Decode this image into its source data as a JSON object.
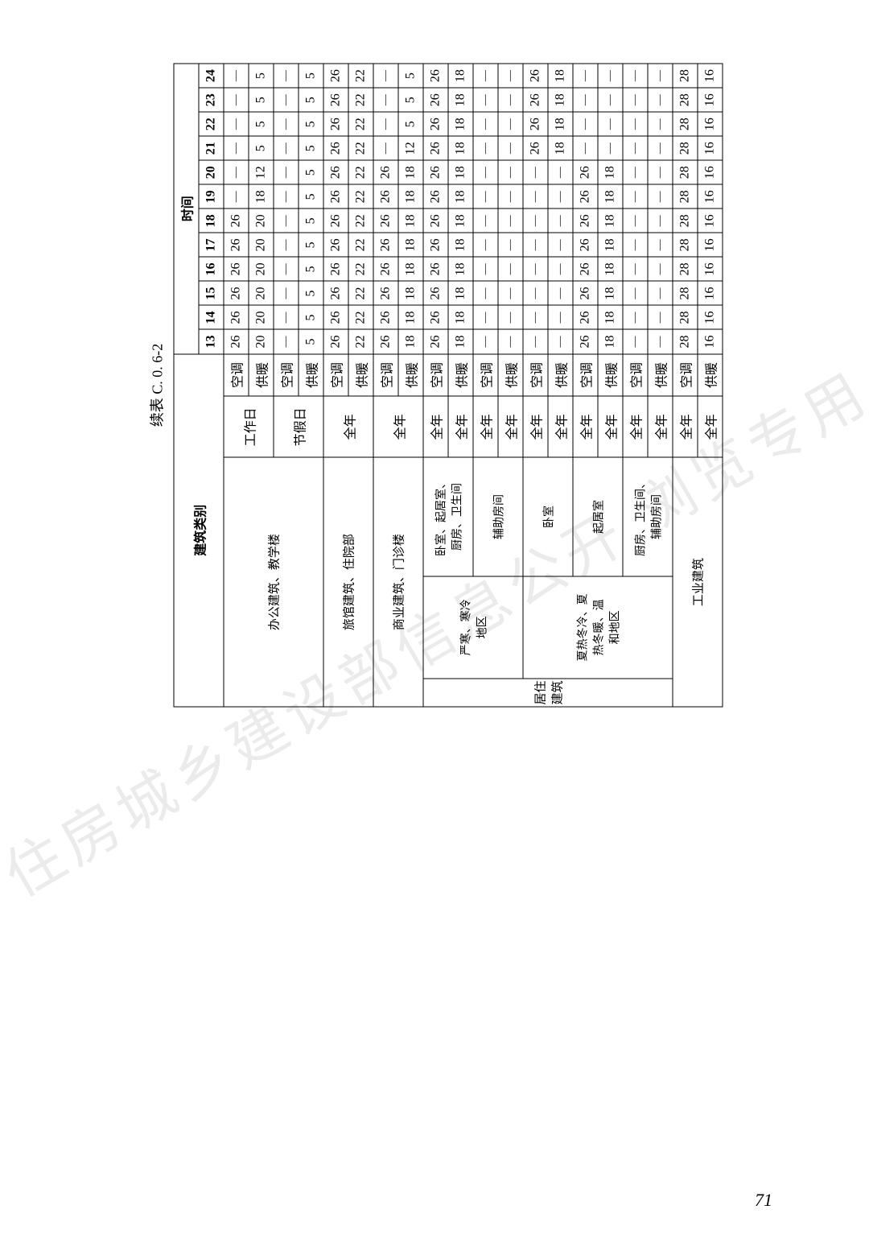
{
  "title": "续表 C. 0. 6-2",
  "page_number": "71",
  "watermark": "住房城乡建设部信息公开 浏览专用",
  "time_header": "时间",
  "category_header": "建筑类别",
  "hour_columns": [
    "13",
    "14",
    "15",
    "16",
    "17",
    "18",
    "19",
    "20",
    "21",
    "22",
    "23",
    "24"
  ],
  "mode_ac": "空调",
  "mode_heat": "供暖",
  "day_work": "工作日",
  "day_holiday": "节假日",
  "day_allyear": "全年",
  "rows": [
    {
      "cat": "办公建筑、教学楼",
      "sub": "",
      "day": "工作日",
      "mode": "空调",
      "v": [
        "26",
        "26",
        "26",
        "26",
        "26",
        "26",
        "—",
        "—",
        "—",
        "—",
        "—",
        "—"
      ]
    },
    {
      "cat": "",
      "sub": "",
      "day": "",
      "mode": "供暖",
      "v": [
        "20",
        "20",
        "20",
        "20",
        "20",
        "20",
        "18",
        "12",
        "5",
        "5",
        "5",
        "5"
      ]
    },
    {
      "cat": "",
      "sub": "",
      "day": "节假日",
      "mode": "空调",
      "v": [
        "—",
        "—",
        "—",
        "—",
        "—",
        "—",
        "—",
        "—",
        "—",
        "—",
        "—",
        "—"
      ]
    },
    {
      "cat": "",
      "sub": "",
      "day": "",
      "mode": "供暖",
      "v": [
        "5",
        "5",
        "5",
        "5",
        "5",
        "5",
        "5",
        "5",
        "5",
        "5",
        "5",
        "5"
      ]
    },
    {
      "cat": "旅馆建筑、住院部",
      "sub": "",
      "day": "全年",
      "mode": "空调",
      "v": [
        "26",
        "26",
        "26",
        "26",
        "26",
        "26",
        "26",
        "26",
        "26",
        "26",
        "26",
        "26"
      ]
    },
    {
      "cat": "",
      "sub": "",
      "day": "",
      "mode": "供暖",
      "v": [
        "22",
        "22",
        "22",
        "22",
        "22",
        "22",
        "22",
        "22",
        "22",
        "22",
        "22",
        "22"
      ]
    },
    {
      "cat": "商业建筑、门诊楼",
      "sub": "",
      "day": "全年",
      "mode": "空调",
      "v": [
        "26",
        "26",
        "26",
        "26",
        "26",
        "26",
        "26",
        "26",
        "—",
        "—",
        "—",
        "—"
      ]
    },
    {
      "cat": "",
      "sub": "",
      "day": "",
      "mode": "供暖",
      "v": [
        "18",
        "18",
        "18",
        "18",
        "18",
        "18",
        "18",
        "18",
        "12",
        "5",
        "5",
        "5"
      ]
    },
    {
      "cat": "居住建筑",
      "sub": "严寒、寒冷地区",
      "room": "卧室、起居室、厨房、卫生间",
      "day": "全年",
      "mode": "空调",
      "v": [
        "26",
        "26",
        "26",
        "26",
        "26",
        "26",
        "26",
        "26",
        "26",
        "26",
        "26",
        "26"
      ]
    },
    {
      "cat": "",
      "sub": "",
      "room": "",
      "day": "全年",
      "mode": "供暖",
      "v": [
        "18",
        "18",
        "18",
        "18",
        "18",
        "18",
        "18",
        "18",
        "18",
        "18",
        "18",
        "18"
      ]
    },
    {
      "cat": "",
      "sub": "",
      "room": "辅助房间",
      "day": "全年",
      "mode": "空调",
      "v": [
        "—",
        "—",
        "—",
        "—",
        "—",
        "—",
        "—",
        "—",
        "—",
        "—",
        "—",
        "—"
      ]
    },
    {
      "cat": "",
      "sub": "",
      "room": "",
      "day": "全年",
      "mode": "供暖",
      "v": [
        "—",
        "—",
        "—",
        "—",
        "—",
        "—",
        "—",
        "—",
        "—",
        "—",
        "—",
        "—"
      ]
    },
    {
      "cat": "",
      "sub": "夏热冬冷、夏热冬暖、温和地区",
      "room": "卧室",
      "day": "全年",
      "mode": "空调",
      "v": [
        "—",
        "—",
        "—",
        "—",
        "—",
        "—",
        "—",
        "—",
        "26",
        "26",
        "26",
        "26"
      ]
    },
    {
      "cat": "",
      "sub": "",
      "room": "",
      "day": "全年",
      "mode": "供暖",
      "v": [
        "—",
        "—",
        "—",
        "—",
        "—",
        "—",
        "—",
        "—",
        "18",
        "18",
        "18",
        "18"
      ]
    },
    {
      "cat": "",
      "sub": "",
      "room": "起居室",
      "day": "全年",
      "mode": "空调",
      "v": [
        "26",
        "26",
        "26",
        "26",
        "26",
        "26",
        "26",
        "26",
        "—",
        "—",
        "—",
        "—"
      ]
    },
    {
      "cat": "",
      "sub": "",
      "room": "",
      "day": "全年",
      "mode": "供暖",
      "v": [
        "18",
        "18",
        "18",
        "18",
        "18",
        "18",
        "18",
        "18",
        "—",
        "—",
        "—",
        "—"
      ]
    },
    {
      "cat": "",
      "sub": "",
      "room": "厨房、卫生间、辅助房间",
      "day": "全年",
      "mode": "空调",
      "v": [
        "—",
        "—",
        "—",
        "—",
        "—",
        "—",
        "—",
        "—",
        "—",
        "—",
        "—",
        "—"
      ]
    },
    {
      "cat": "",
      "sub": "",
      "room": "",
      "day": "全年",
      "mode": "供暖",
      "v": [
        "—",
        "—",
        "—",
        "—",
        "—",
        "—",
        "—",
        "—",
        "—",
        "—",
        "—",
        "—"
      ]
    },
    {
      "cat": "工业建筑",
      "sub": "",
      "day": "全年",
      "mode": "空调",
      "v": [
        "28",
        "28",
        "28",
        "28",
        "28",
        "28",
        "28",
        "28",
        "28",
        "28",
        "28",
        "28"
      ]
    },
    {
      "cat": "",
      "sub": "",
      "day": "全年",
      "mode": "供暖",
      "v": [
        "16",
        "16",
        "16",
        "16",
        "16",
        "16",
        "16",
        "16",
        "16",
        "16",
        "16",
        "16"
      ]
    }
  ]
}
